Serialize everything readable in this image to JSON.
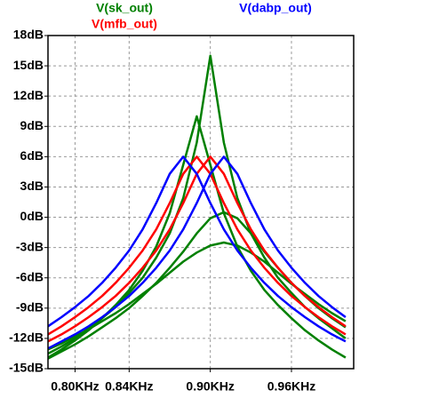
{
  "chart_data": {
    "type": "line",
    "x": [
      0.78,
      0.79,
      0.8,
      0.81,
      0.82,
      0.83,
      0.84,
      0.85,
      0.86,
      0.87,
      0.88,
      0.89,
      0.9,
      0.91,
      0.92,
      0.93,
      0.94,
      0.95,
      0.96,
      0.97,
      0.98,
      0.99,
      1.0
    ],
    "series": [
      {
        "name": "V(sk_out)",
        "color": "#008000",
        "curves": [
          [
            -13.5,
            -12.8,
            -12,
            -11,
            -10,
            -8.9,
            -7.5,
            -6,
            -4,
            -1.6,
            1.9,
            7.4,
            16,
            7.4,
            1.9,
            -1.6,
            -4,
            -6,
            -7.5,
            -8.9,
            -10,
            -11,
            -12
          ],
          [
            -13.9,
            -13.1,
            -12.2,
            -11.2,
            -10,
            -8.7,
            -7.2,
            -5.3,
            -2.9,
            0.4,
            5.2,
            10,
            5.2,
            0.4,
            -2.9,
            -5.3,
            -7.2,
            -8.7,
            -10,
            -11.2,
            -12.2,
            -13.1,
            -13.9
          ],
          [
            -13.1,
            -12.5,
            -11.8,
            -11.1,
            -10.3,
            -9.5,
            -8.6,
            -7.6,
            -6.6,
            -5.5,
            -4.4,
            -3.5,
            -2.8,
            -2.5,
            -2.8,
            -3.5,
            -4.4,
            -5.5,
            -6.6,
            -7.6,
            -8.6,
            -9.5,
            -10.3
          ],
          [
            -14.0,
            -13.3,
            -12.6,
            -11.8,
            -10.9,
            -10.0,
            -9.0,
            -7.8,
            -6.5,
            -5.0,
            -3.4,
            -1.6,
            -0.1,
            0.5,
            -0.1,
            -1.6,
            -3.4,
            -5.0,
            -6.5,
            -7.8,
            -9.0,
            -10.0,
            -10.9
          ]
        ]
      },
      {
        "name": "V(mfb_out)",
        "color": "#ff0000",
        "curves": [
          [
            -12.3,
            -11.6,
            -10.8,
            -9.9,
            -8.9,
            -7.8,
            -6.5,
            -5.0,
            -3.3,
            -1.2,
            1.4,
            4.3,
            6,
            4.3,
            1.4,
            -1.2,
            -3.3,
            -5.0,
            -6.5,
            -7.8,
            -8.9,
            -9.9,
            -10.8
          ],
          [
            -11.6,
            -10.8,
            -9.9,
            -8.9,
            -7.8,
            -6.5,
            -5.0,
            -3.3,
            -1.2,
            1.4,
            4.3,
            6,
            4.3,
            1.4,
            -1.2,
            -3.3,
            -5.0,
            -6.5,
            -7.8,
            -8.9,
            -9.9,
            -10.8,
            -11.6
          ]
        ]
      },
      {
        "name": "V(dabp_out)",
        "color": "#0000ff",
        "curves": [
          [
            -13.0,
            -12.3,
            -11.6,
            -10.8,
            -9.9,
            -8.9,
            -7.8,
            -6.5,
            -5.0,
            -3.3,
            -1.2,
            1.4,
            4.3,
            6,
            4.3,
            1.4,
            -1.2,
            -3.3,
            -5.0,
            -6.5,
            -7.8,
            -8.9,
            -9.9
          ],
          [
            -10.8,
            -9.9,
            -8.9,
            -7.8,
            -6.5,
            -5.0,
            -3.3,
            -1.2,
            1.4,
            4.3,
            6,
            4.3,
            1.4,
            -1.2,
            -3.3,
            -5.0,
            -6.5,
            -7.8,
            -8.9,
            -9.9,
            -10.8,
            -11.6,
            -12.3
          ]
        ]
      }
    ],
    "xlim": [
      0.78,
      1.006
    ],
    "xticks": [
      {
        "value": 0.8,
        "label": "0.80KHz"
      },
      {
        "value": 0.84,
        "label": "0.84KHz"
      },
      {
        "value": 0.9,
        "label": "0.90KHz"
      },
      {
        "value": 0.96,
        "label": "0.96KHz"
      }
    ],
    "ylim": [
      -15,
      18
    ],
    "yticks": [
      {
        "value": 18,
        "label": "18dB"
      },
      {
        "value": 15,
        "label": "15dB"
      },
      {
        "value": 12,
        "label": "12dB"
      },
      {
        "value": 9,
        "label": "9dB"
      },
      {
        "value": 6,
        "label": "6dB"
      },
      {
        "value": 3,
        "label": "3dB"
      },
      {
        "value": 0,
        "label": "0dB"
      },
      {
        "value": -3,
        "label": "-3dB"
      },
      {
        "value": -6,
        "label": "-6dB"
      },
      {
        "value": -9,
        "label": "-9dB"
      },
      {
        "value": -12,
        "label": "-12dB"
      },
      {
        "value": -15,
        "label": "-15dB"
      }
    ],
    "grid": true
  }
}
